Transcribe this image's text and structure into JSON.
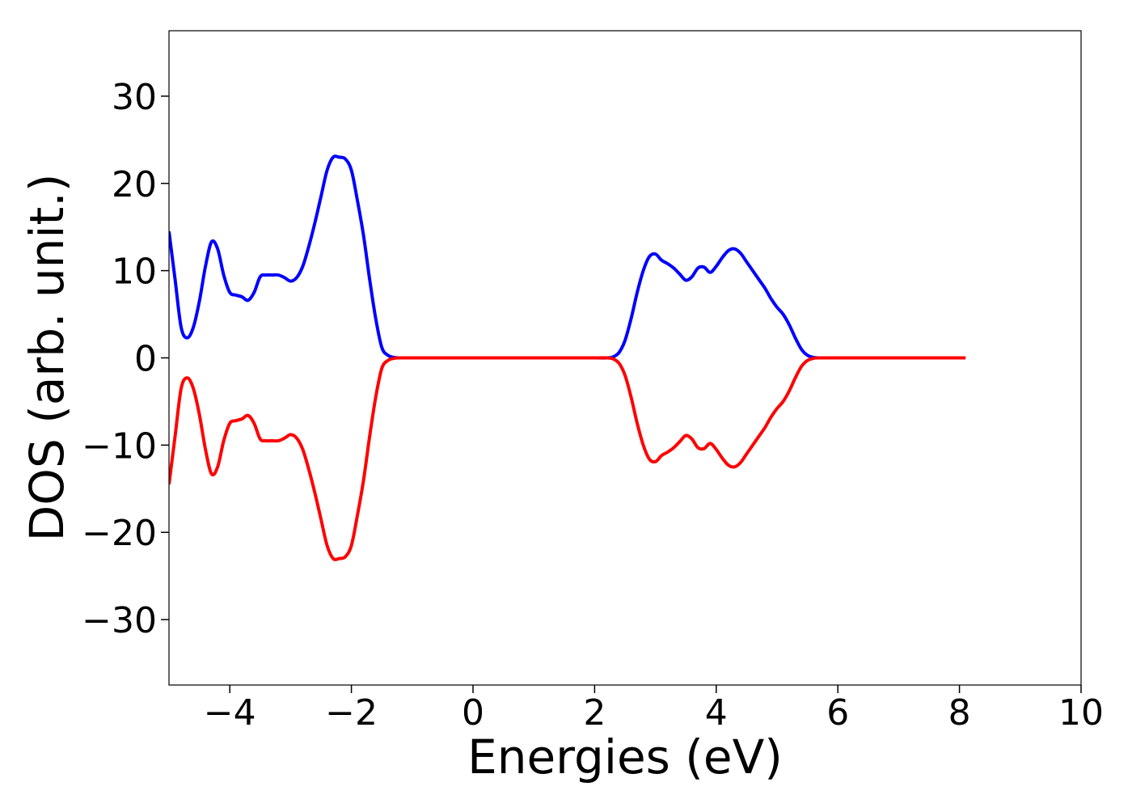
{
  "chart_data": {
    "type": "line",
    "title": "",
    "xlabel": "Energies (eV)",
    "ylabel": "DOS (arb. unit.)",
    "xlim": [
      -5,
      10
    ],
    "ylim": [
      -37.5,
      37.5
    ],
    "xticks": [
      -4,
      -2,
      0,
      2,
      4,
      6,
      8,
      10
    ],
    "xtick_labels": [
      "−4",
      "−2",
      "0",
      "2",
      "4",
      "6",
      "8",
      "10"
    ],
    "yticks": [
      30,
      20,
      10,
      0,
      -10,
      -20,
      -30
    ],
    "ytick_labels": [
      "30",
      "20",
      "10",
      "0",
      "−10",
      "−20",
      "−30"
    ],
    "grid": false,
    "legend": "none",
    "series": [
      {
        "color": "#0000ff",
        "x": [
          -5.0,
          -4.9,
          -4.8,
          -4.7,
          -4.6,
          -4.5,
          -4.4,
          -4.3,
          -4.2,
          -4.1,
          -4.0,
          -3.9,
          -3.8,
          -3.7,
          -3.6,
          -3.5,
          -3.4,
          -3.3,
          -3.2,
          -3.1,
          -3.0,
          -2.9,
          -2.8,
          -2.7,
          -2.6,
          -2.5,
          -2.4,
          -2.3,
          -2.2,
          -2.1,
          -2.0,
          -1.9,
          -1.8,
          -1.7,
          -1.6,
          -1.5,
          -1.4,
          -1.3,
          -1.2,
          -1.1,
          -1.0,
          -0.9,
          -0.8,
          -0.7,
          -0.6,
          -0.5,
          0.0,
          1.0,
          2.0,
          2.2,
          2.3,
          2.4,
          2.5,
          2.6,
          2.7,
          2.8,
          2.9,
          3.0,
          3.1,
          3.2,
          3.3,
          3.4,
          3.5,
          3.6,
          3.7,
          3.8,
          3.9,
          4.0,
          4.1,
          4.2,
          4.3,
          4.4,
          4.5,
          4.6,
          4.7,
          4.8,
          4.9,
          5.0,
          5.1,
          5.2,
          5.3,
          5.4,
          5.5,
          5.6,
          5.7,
          5.8,
          5.9,
          6.0,
          6.1,
          6.2,
          6.3,
          6.4,
          7.0,
          8.1
        ],
        "y": [
          14.5,
          9.0,
          3.5,
          2.3,
          3.5,
          6.5,
          10.5,
          13.3,
          12.5,
          9.5,
          7.5,
          7.2,
          7.0,
          6.6,
          7.5,
          9.3,
          9.5,
          9.5,
          9.5,
          9.2,
          8.8,
          9.2,
          10.5,
          12.8,
          15.5,
          18.5,
          21.5,
          23.0,
          23.0,
          22.8,
          21.5,
          18.0,
          14.0,
          9.0,
          4.5,
          1.2,
          0.3,
          0.05,
          0.0,
          0.0,
          0.0,
          0.0,
          0.0,
          0.0,
          0.0,
          0.0,
          0.0,
          0.0,
          0.0,
          0.0,
          0.1,
          0.6,
          2.0,
          4.5,
          7.5,
          10.0,
          11.6,
          11.9,
          11.2,
          10.8,
          10.3,
          9.6,
          8.9,
          9.3,
          10.3,
          10.4,
          9.8,
          10.5,
          11.5,
          12.3,
          12.5,
          12.0,
          11.0,
          10.0,
          9.0,
          8.0,
          6.8,
          5.8,
          5.0,
          3.8,
          2.3,
          1.0,
          0.3,
          0.05,
          0.0,
          0.0,
          0.0,
          0.0,
          0.0,
          0.0,
          0.0,
          0.0,
          0.0,
          0.0
        ]
      },
      {
        "color": "#ff0000",
        "x": [
          -5.0,
          -4.9,
          -4.8,
          -4.7,
          -4.6,
          -4.5,
          -4.4,
          -4.3,
          -4.2,
          -4.1,
          -4.0,
          -3.9,
          -3.8,
          -3.7,
          -3.6,
          -3.5,
          -3.4,
          -3.3,
          -3.2,
          -3.1,
          -3.0,
          -2.9,
          -2.8,
          -2.7,
          -2.6,
          -2.5,
          -2.4,
          -2.3,
          -2.2,
          -2.1,
          -2.0,
          -1.9,
          -1.8,
          -1.7,
          -1.6,
          -1.5,
          -1.4,
          -1.3,
          -1.2,
          -1.1,
          -1.0,
          -0.9,
          -0.8,
          -0.7,
          -0.6,
          -0.5,
          0.0,
          1.0,
          2.0,
          2.2,
          2.3,
          2.4,
          2.5,
          2.6,
          2.7,
          2.8,
          2.9,
          3.0,
          3.1,
          3.2,
          3.3,
          3.4,
          3.5,
          3.6,
          3.7,
          3.8,
          3.9,
          4.0,
          4.1,
          4.2,
          4.3,
          4.4,
          4.5,
          4.6,
          4.7,
          4.8,
          4.9,
          5.0,
          5.1,
          5.2,
          5.3,
          5.4,
          5.5,
          5.6,
          5.7,
          5.8,
          5.9,
          6.0,
          6.1,
          6.2,
          6.3,
          6.4,
          7.0,
          8.1
        ],
        "y": [
          -14.5,
          -9.0,
          -3.5,
          -2.3,
          -3.5,
          -6.5,
          -10.5,
          -13.3,
          -12.5,
          -9.5,
          -7.5,
          -7.2,
          -7.0,
          -6.6,
          -7.5,
          -9.3,
          -9.5,
          -9.5,
          -9.5,
          -9.2,
          -8.8,
          -9.2,
          -10.5,
          -12.8,
          -15.5,
          -18.5,
          -21.5,
          -23.0,
          -23.0,
          -22.8,
          -21.5,
          -18.0,
          -14.0,
          -9.0,
          -4.5,
          -1.2,
          -0.3,
          -0.05,
          0.0,
          0.0,
          0.0,
          0.0,
          0.0,
          0.0,
          0.0,
          0.0,
          0.0,
          0.0,
          0.0,
          0.0,
          -0.1,
          -0.6,
          -2.0,
          -4.5,
          -7.5,
          -10.0,
          -11.6,
          -11.9,
          -11.2,
          -10.8,
          -10.3,
          -9.6,
          -8.9,
          -9.3,
          -10.3,
          -10.4,
          -9.8,
          -10.5,
          -11.5,
          -12.3,
          -12.5,
          -12.0,
          -11.0,
          -10.0,
          -9.0,
          -8.0,
          -6.8,
          -5.8,
          -5.0,
          -3.8,
          -2.3,
          -1.0,
          -0.3,
          -0.05,
          0.0,
          0.0,
          0.0,
          0.0,
          0.0,
          0.0,
          0.0,
          0.0,
          0.0,
          0.0
        ]
      }
    ]
  }
}
